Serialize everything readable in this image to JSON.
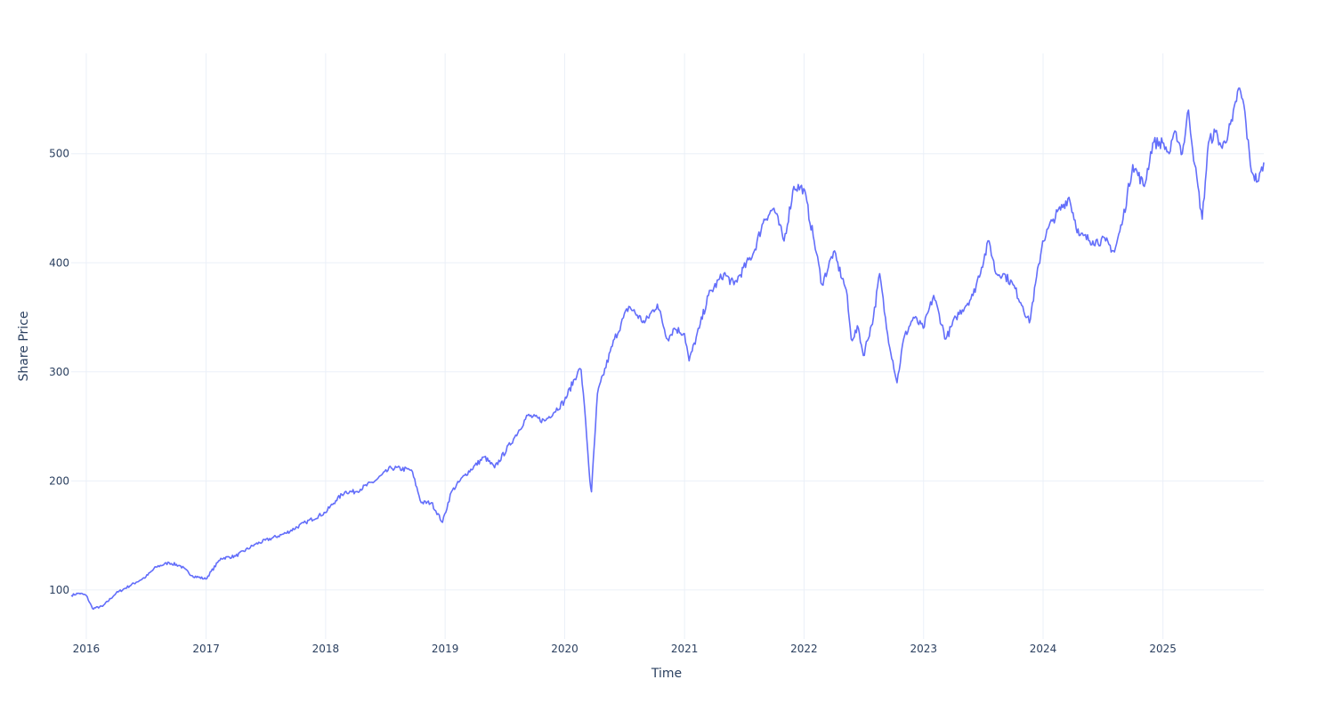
{
  "chart_data": {
    "type": "line",
    "title": "",
    "xlabel": "Time",
    "ylabel": "Share Price",
    "xlim": [
      "2015-11-16",
      "2025-11-05"
    ],
    "ylim": [
      55,
      592
    ],
    "x_ticks": [
      "2016",
      "2017",
      "2018",
      "2019",
      "2020",
      "2021",
      "2022",
      "2023",
      "2024",
      "2025"
    ],
    "y_ticks": [
      100,
      200,
      300,
      400,
      500
    ],
    "grid": true,
    "legend": "none",
    "colors": {
      "line": "#636efa",
      "grid": "#ebf0f8",
      "text": "#2a3f5f"
    },
    "series": [
      {
        "x": [
          "2015-11-16",
          "2015-12-10",
          "2016-01-01",
          "2016-01-20",
          "2016-02-20",
          "2016-04-01",
          "2016-06-01",
          "2016-07-01",
          "2016-08-01",
          "2016-09-10",
          "2016-10-15",
          "2016-11-20",
          "2016-12-31",
          "2017-02-15",
          "2017-04-01",
          "2017-06-01",
          "2017-09-01",
          "2017-11-01",
          "2017-12-31",
          "2018-02-01",
          "2018-03-01",
          "2018-04-01",
          "2018-06-01",
          "2018-07-20",
          "2018-09-20",
          "2018-10-20",
          "2018-11-20",
          "2018-12-24",
          "2019-01-20",
          "2019-03-01",
          "2019-05-01",
          "2019-06-01",
          "2019-08-01",
          "2019-09-10",
          "2019-11-01",
          "2019-12-31",
          "2020-02-10",
          "2020-02-20",
          "2020-03-05",
          "2020-03-18",
          "2020-03-23",
          "2020-04-10",
          "2020-06-01",
          "2020-07-15",
          "2020-09-01",
          "2020-10-10",
          "2020-11-10",
          "2020-12-01",
          "2021-01-01",
          "2021-01-15",
          "2021-02-15",
          "2021-03-15",
          "2021-05-01",
          "2021-06-01",
          "2021-08-01",
          "2021-09-01",
          "2021-10-01",
          "2021-11-01",
          "2021-12-01",
          "2021-12-31",
          "2022-02-01",
          "2022-02-25",
          "2022-04-01",
          "2022-05-10",
          "2022-05-25",
          "2022-06-16",
          "2022-07-01",
          "2022-08-01",
          "2022-08-20",
          "2022-09-10",
          "2022-10-12",
          "2022-11-01",
          "2022-12-01",
          "2022-12-31",
          "2023-02-01",
          "2023-03-10",
          "2023-04-10",
          "2023-06-01",
          "2023-07-20",
          "2023-08-10",
          "2023-09-01",
          "2023-10-01",
          "2023-10-31",
          "2023-11-20",
          "2023-12-31",
          "2024-02-01",
          "2024-03-20",
          "2024-04-20",
          "2024-06-01",
          "2024-07-10",
          "2024-08-06",
          "2024-09-01",
          "2024-10-01",
          "2024-11-05",
          "2024-12-01",
          "2024-12-31",
          "2025-01-20",
          "2025-02-10",
          "2025-03-01",
          "2025-03-20",
          "2025-04-08",
          "2025-05-01",
          "2025-05-20",
          "2025-06-10",
          "2025-07-01",
          "2025-08-01",
          "2025-08-20",
          "2025-09-05",
          "2025-09-25",
          "2025-10-05",
          "2025-10-20",
          "2025-11-05"
        ],
        "y": [
          95,
          97,
          95,
          83,
          85,
          97,
          107,
          112,
          121,
          125,
          122,
          113,
          110,
          129,
          131,
          142,
          152,
          162,
          171,
          182,
          190,
          190,
          200,
          212,
          210,
          180,
          180,
          162,
          190,
          205,
          222,
          212,
          240,
          260,
          255,
          273,
          300,
          302,
          255,
          200,
          190,
          280,
          330,
          360,
          345,
          362,
          330,
          340,
          335,
          310,
          340,
          370,
          390,
          380,
          410,
          440,
          450,
          420,
          470,
          468,
          420,
          380,
          410,
          375,
          330,
          340,
          315,
          350,
          390,
          340,
          290,
          330,
          350,
          340,
          370,
          330,
          350,
          370,
          420,
          390,
          390,
          380,
          360,
          345,
          420,
          440,
          460,
          425,
          420,
          420,
          410,
          440,
          490,
          470,
          510,
          510,
          500,
          520,
          500,
          540,
          490,
          440,
          510,
          520,
          505,
          530,
          560,
          545,
          490,
          480,
          475,
          492
        ]
      }
    ]
  }
}
